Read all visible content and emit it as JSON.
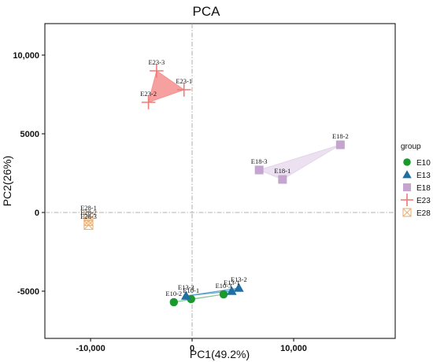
{
  "chart_data": {
    "type": "scatter",
    "title": "PCA",
    "xlabel": "PC1(49.2%)",
    "ylabel": "PC2(26%)",
    "xlim": [
      -14500,
      20000
    ],
    "ylim": [
      -8000,
      12000
    ],
    "xticks": [
      -10000,
      0,
      10000
    ],
    "xtick_labels": [
      "-10,000",
      "0",
      "10,000"
    ],
    "yticks": [
      -5000,
      0,
      5000,
      10000
    ],
    "ytick_labels": [
      "-5000",
      "0",
      "5000",
      "10,000"
    ],
    "grid": false,
    "reference_lines": {
      "x": 0,
      "y": 0,
      "style": "dash-dot"
    },
    "legend": {
      "title": "group",
      "placement": "right"
    },
    "series": [
      {
        "name": "E10",
        "marker": "circle",
        "color": "#1a9a2c",
        "hull_fill": "#7dc98a",
        "hull_opacity": 0.5,
        "points": [
          {
            "label": "E10-1",
            "x": -100,
            "y": -5500
          },
          {
            "label": "E10-2",
            "x": -1800,
            "y": -5700
          },
          {
            "label": "E10-3",
            "x": 3100,
            "y": -5200
          }
        ]
      },
      {
        "name": "E13",
        "marker": "triangle",
        "color": "#1f6fa0",
        "hull_fill": "#5aa0cc",
        "hull_opacity": 0.45,
        "points": [
          {
            "label": "E13-1",
            "x": 3900,
            "y": -5000
          },
          {
            "label": "E13-2",
            "x": 4600,
            "y": -4800
          },
          {
            "label": "E13-3",
            "x": -600,
            "y": -5300
          }
        ]
      },
      {
        "name": "E18",
        "marker": "square",
        "color": "#c5a5cf",
        "hull_fill": "#e4d4ea",
        "hull_opacity": 0.7,
        "points": [
          {
            "label": "E18-1",
            "x": 8900,
            "y": 2100
          },
          {
            "label": "E18-2",
            "x": 14600,
            "y": 4300
          },
          {
            "label": "E18-3",
            "x": 6600,
            "y": 2700
          }
        ]
      },
      {
        "name": "E23",
        "marker": "plus",
        "color": "#f07a78",
        "hull_fill": "#f4908e",
        "hull_opacity": 0.85,
        "points": [
          {
            "label": "E23-1",
            "x": -800,
            "y": 7800
          },
          {
            "label": "E23-2",
            "x": -4300,
            "y": 7000
          },
          {
            "label": "E23-3",
            "x": -3500,
            "y": 9000
          }
        ]
      },
      {
        "name": "E28",
        "marker": "square-x",
        "color": "#e8b07a",
        "hull_fill": "#f2cfa5",
        "hull_opacity": 0.6,
        "points": [
          {
            "label": "E28-1",
            "x": -10200,
            "y": -250
          },
          {
            "label": "E28-2",
            "x": -10200,
            "y": -550
          },
          {
            "label": "E28-3",
            "x": -10200,
            "y": -800
          }
        ]
      }
    ]
  }
}
